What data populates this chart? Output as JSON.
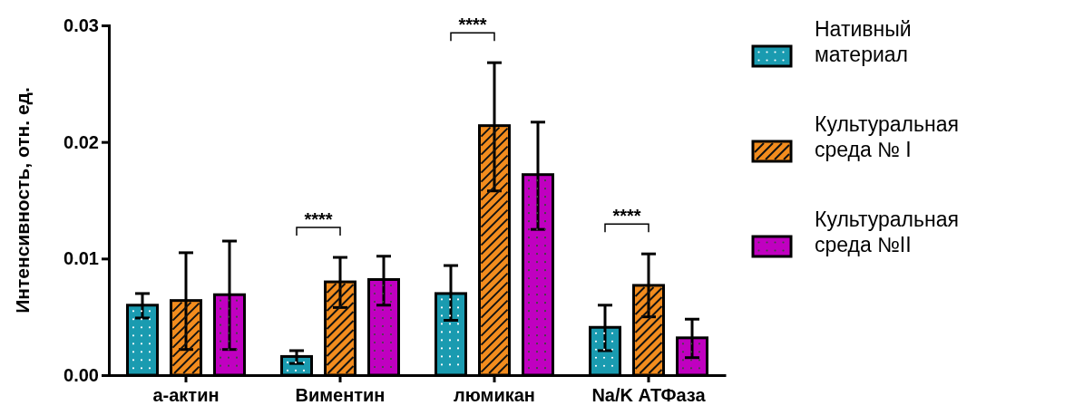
{
  "chart_data": {
    "type": "bar",
    "ylabel": "Интенсивность, отн. ед.",
    "categories": [
      "а-актин",
      "Виментин",
      "люмикан",
      "Na/K АТФаза"
    ],
    "series": [
      {
        "name": "Нативный материал",
        "color": "#1a9bb0",
        "values": [
          0.006,
          0.0016,
          0.007,
          0.0041
        ],
        "errors": [
          [
            0.0049,
            0.007
          ],
          [
            0.001,
            0.0021
          ],
          [
            0.0047,
            0.0094
          ],
          [
            0.0021,
            0.006
          ]
        ]
      },
      {
        "name": "Культуральная среда № I",
        "color": "#f28c1e",
        "values": [
          0.0064,
          0.008,
          0.0214,
          0.0077
        ],
        "errors": [
          [
            0.0022,
            0.0105
          ],
          [
            0.0058,
            0.0101
          ],
          [
            0.0158,
            0.0268
          ],
          [
            0.005,
            0.0104
          ]
        ]
      },
      {
        "name": "Культуральная среда №II",
        "color": "#c000c0",
        "values": [
          0.0069,
          0.0082,
          0.0172,
          0.0032
        ],
        "errors": [
          [
            0.0022,
            0.0115
          ],
          [
            0.006,
            0.0102
          ],
          [
            0.0125,
            0.0217
          ],
          [
            0.0015,
            0.0048
          ]
        ]
      }
    ],
    "ylim": [
      0,
      0.03
    ],
    "yticks": [
      {
        "value": 0,
        "label": "0.00"
      },
      {
        "value": 0.01,
        "label": "0.01"
      },
      {
        "value": 0.02,
        "label": "0.02"
      },
      {
        "value": 0.03,
        "label": "0.03"
      }
    ],
    "grid": false,
    "legend": "right",
    "annotations": [
      "****",
      "****",
      "****"
    ]
  }
}
